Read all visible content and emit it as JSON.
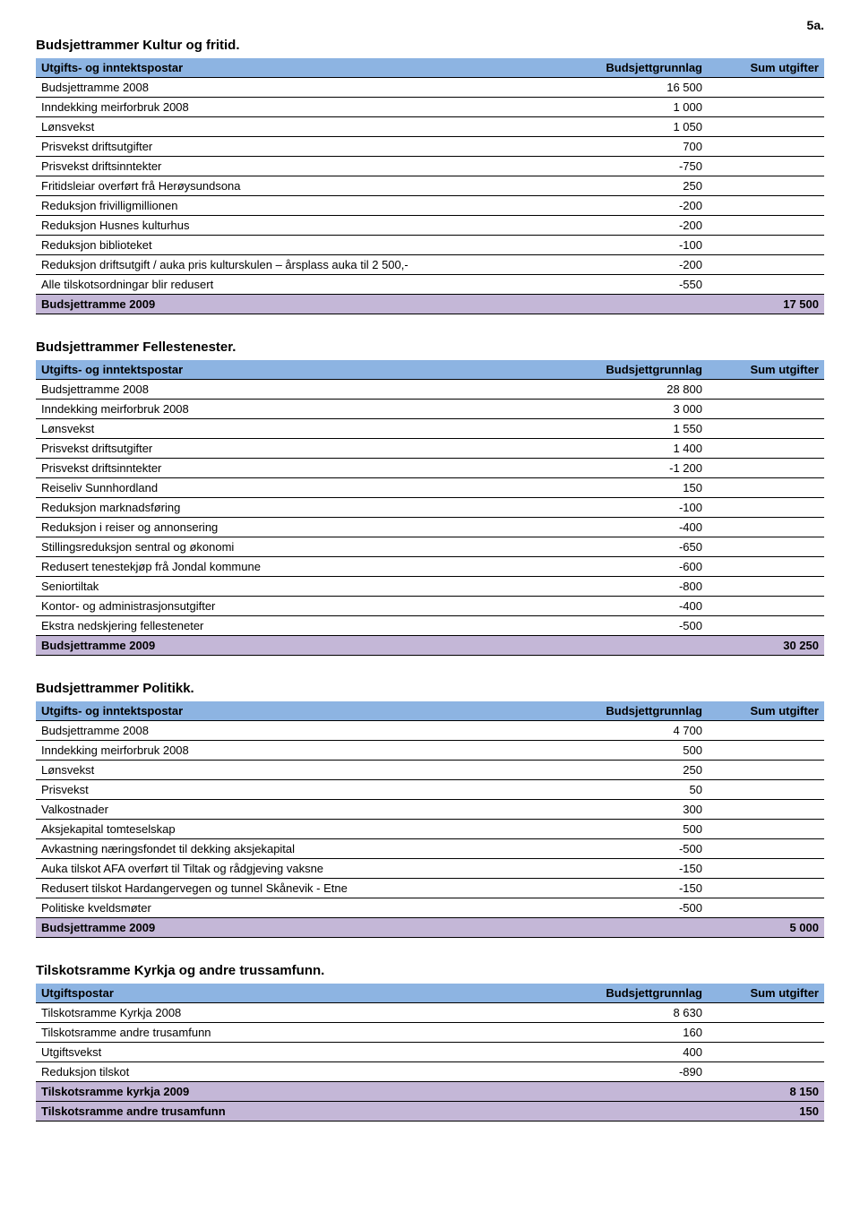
{
  "page_marker": "5a.",
  "colors": {
    "header_bg": "#8db4e2",
    "total_bg": "#c4b7d7",
    "border": "#000000",
    "text": "#000000",
    "background": "#ffffff"
  },
  "sections": [
    {
      "title": "Budsjettrammer Kultur og fritid.",
      "col1": "Utgifts- og inntektspostar",
      "col2": "Budsjettgrunnlag",
      "col3": "Sum utgifter",
      "rows": [
        {
          "label": "Budsjettramme 2008",
          "v1": "16 500",
          "v2": ""
        },
        {
          "label": "Inndekking meirforbruk 2008",
          "v1": "1 000",
          "v2": ""
        },
        {
          "label": "Lønsvekst",
          "v1": "1 050",
          "v2": ""
        },
        {
          "label": "Prisvekst driftsutgifter",
          "v1": "700",
          "v2": ""
        },
        {
          "label": "Prisvekst driftsinntekter",
          "v1": "-750",
          "v2": ""
        },
        {
          "label": "Fritidsleiar overført frå Herøysundsona",
          "v1": "250",
          "v2": ""
        },
        {
          "label": "Reduksjon frivilligmillionen",
          "v1": "-200",
          "v2": ""
        },
        {
          "label": "Reduksjon Husnes kulturhus",
          "v1": "-200",
          "v2": ""
        },
        {
          "label": "Reduksjon biblioteket",
          "v1": "-100",
          "v2": ""
        },
        {
          "label": "Reduksjon driftsutgift / auka pris kulturskulen – årsplass auka til 2 500,-",
          "v1": "-200",
          "v2": ""
        },
        {
          "label": "Alle tilskotsordningar blir redusert",
          "v1": "-550",
          "v2": ""
        }
      ],
      "total": {
        "label": "Budsjettramme 2009",
        "v1": "",
        "v2": "17 500"
      }
    },
    {
      "title": "Budsjettrammer Fellestenester.",
      "col1": "Utgifts- og inntektspostar",
      "col2": "Budsjettgrunnlag",
      "col3": "Sum utgifter",
      "rows": [
        {
          "label": "Budsjettramme 2008",
          "v1": "28 800",
          "v2": ""
        },
        {
          "label": "Inndekking meirforbruk 2008",
          "v1": "3 000",
          "v2": ""
        },
        {
          "label": "Lønsvekst",
          "v1": "1 550",
          "v2": ""
        },
        {
          "label": "Prisvekst driftsutgifter",
          "v1": "1 400",
          "v2": ""
        },
        {
          "label": "Prisvekst driftsinntekter",
          "v1": "-1 200",
          "v2": ""
        },
        {
          "label": "Reiseliv Sunnhordland",
          "v1": "150",
          "v2": ""
        },
        {
          "label": "Reduksjon marknadsføring",
          "v1": "-100",
          "v2": ""
        },
        {
          "label": "Reduksjon i reiser og annonsering",
          "v1": "-400",
          "v2": ""
        },
        {
          "label": "Stillingsreduksjon sentral og økonomi",
          "v1": "-650",
          "v2": ""
        },
        {
          "label": "Redusert tenestekjøp frå Jondal kommune",
          "v1": "-600",
          "v2": ""
        },
        {
          "label": "Seniortiltak",
          "v1": "-800",
          "v2": ""
        },
        {
          "label": "Kontor- og administrasjonsutgifter",
          "v1": "-400",
          "v2": ""
        },
        {
          "label": "Ekstra nedskjering fellesteneter",
          "v1": "-500",
          "v2": ""
        }
      ],
      "total": {
        "label": "Budsjettramme 2009",
        "v1": "",
        "v2": "30 250"
      }
    },
    {
      "title": "Budsjettrammer Politikk.",
      "col1": "Utgifts- og inntektspostar",
      "col2": "Budsjettgrunnlag",
      "col3": "Sum utgifter",
      "rows": [
        {
          "label": "Budsjettramme 2008",
          "v1": "4 700",
          "v2": ""
        },
        {
          "label": "Inndekking meirforbruk 2008",
          "v1": "500",
          "v2": ""
        },
        {
          "label": "Lønsvekst",
          "v1": "250",
          "v2": ""
        },
        {
          "label": "Prisvekst",
          "v1": "50",
          "v2": ""
        },
        {
          "label": "Valkostnader",
          "v1": "300",
          "v2": ""
        },
        {
          "label": "Aksjekapital tomteselskap",
          "v1": "500",
          "v2": ""
        },
        {
          "label": "Avkastning næringsfondet til dekking aksjekapital",
          "v1": "-500",
          "v2": ""
        },
        {
          "label": "Auka tilskot AFA overført til Tiltak og rådgjeving vaksne",
          "v1": "-150",
          "v2": ""
        },
        {
          "label": "Redusert tilskot Hardangervegen og tunnel Skånevik - Etne",
          "v1": "-150",
          "v2": ""
        },
        {
          "label": "Politiske kveldsmøter",
          "v1": "-500",
          "v2": ""
        }
      ],
      "total": {
        "label": "Budsjettramme 2009",
        "v1": "",
        "v2": "5 000"
      }
    },
    {
      "title": "Tilskotsramme Kyrkja og andre trussamfunn.",
      "col1": "Utgiftspostar",
      "col2": "Budsjettgrunnlag",
      "col3": "Sum utgifter",
      "rows": [
        {
          "label": "Tilskotsramme Kyrkja 2008",
          "v1": "8 630",
          "v2": ""
        },
        {
          "label": "Tilskotsramme andre trusamfunn",
          "v1": "160",
          "v2": ""
        },
        {
          "label": "Utgiftsvekst",
          "v1": "400",
          "v2": ""
        },
        {
          "label": "Reduksjon tilskot",
          "v1": "-890",
          "v2": ""
        }
      ],
      "totals": [
        {
          "label": "Tilskotsramme kyrkja 2009",
          "v1": "",
          "v2": "8 150"
        },
        {
          "label": "Tilskotsramme andre trusamfunn",
          "v1": "",
          "v2": "150"
        }
      ]
    }
  ]
}
